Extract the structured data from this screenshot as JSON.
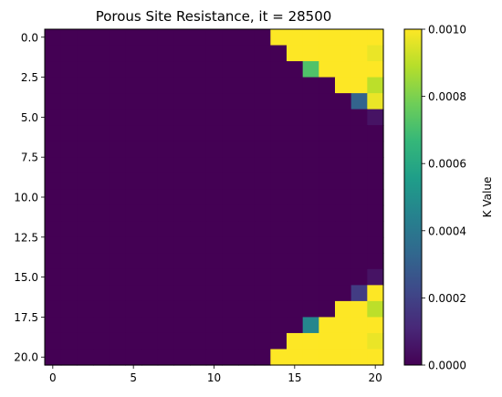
{
  "chart_data": {
    "type": "heatmap",
    "title": "Porous Site Resistance, it = 28500",
    "colorbar_label": "K Value",
    "colormap": "viridis",
    "vmin": 0.0,
    "vmax": 0.001,
    "n_rows": 21,
    "n_cols": 21,
    "xlim": [
      -0.5,
      20.5
    ],
    "ylim": [
      20.5,
      -0.5
    ],
    "x_ticks": [
      "0",
      "5",
      "10",
      "15",
      "20"
    ],
    "y_ticks": [
      "0.0",
      "2.5",
      "5.0",
      "7.5",
      "10.0",
      "12.5",
      "15.0",
      "17.5",
      "20.0"
    ],
    "colorbar_ticks": [
      "0.0000",
      "0.0002",
      "0.0004",
      "0.0006",
      "0.0008",
      "0.0010"
    ],
    "values": [
      [
        0,
        0,
        0,
        0,
        0,
        0,
        0,
        0,
        0,
        0,
        0,
        0,
        0,
        0,
        0.001,
        0.001,
        0.001,
        0.001,
        0.001,
        0.001,
        0.001
      ],
      [
        0,
        0,
        0,
        0,
        0,
        0,
        0,
        0,
        0,
        0,
        0,
        0,
        0,
        0,
        0,
        0.001,
        0.001,
        0.001,
        0.001,
        0.001,
        0.00097
      ],
      [
        0,
        0,
        0,
        0,
        0,
        0,
        0,
        0,
        0,
        0,
        0,
        0,
        0,
        0,
        0,
        0,
        0.00072,
        0.001,
        0.001,
        0.001,
        0.001
      ],
      [
        0,
        0,
        0,
        0,
        0,
        0,
        0,
        0,
        0,
        0,
        0,
        0,
        0,
        0,
        0,
        0,
        0,
        0,
        0.001,
        0.001,
        0.0009
      ],
      [
        0,
        0,
        0,
        0,
        0,
        0,
        0,
        0,
        0,
        0,
        0,
        0,
        0,
        0,
        0,
        0,
        0,
        0,
        0,
        0.00032,
        0.00097
      ],
      [
        0,
        0,
        0,
        0,
        0,
        0,
        0,
        0,
        0,
        0,
        0,
        0,
        0,
        0,
        0,
        0,
        0,
        0,
        0,
        0,
        5e-05
      ],
      [
        0,
        0,
        0,
        0,
        0,
        0,
        0,
        0,
        0,
        0,
        0,
        0,
        0,
        0,
        0,
        0,
        0,
        0,
        0,
        0,
        0
      ],
      [
        0,
        0,
        0,
        0,
        0,
        0,
        0,
        0,
        0,
        0,
        0,
        0,
        0,
        0,
        0,
        0,
        0,
        0,
        0,
        0,
        0
      ],
      [
        0,
        0,
        0,
        0,
        0,
        0,
        0,
        0,
        0,
        0,
        0,
        0,
        0,
        0,
        0,
        0,
        0,
        0,
        0,
        0,
        0
      ],
      [
        0,
        0,
        0,
        0,
        0,
        0,
        0,
        0,
        0,
        0,
        0,
        0,
        0,
        0,
        0,
        0,
        0,
        0,
        0,
        0,
        0
      ],
      [
        0,
        0,
        0,
        0,
        0,
        0,
        0,
        0,
        0,
        0,
        0,
        0,
        0,
        0,
        0,
        0,
        0,
        0,
        0,
        0,
        0
      ],
      [
        0,
        0,
        0,
        0,
        0,
        0,
        0,
        0,
        0,
        0,
        0,
        0,
        0,
        0,
        0,
        0,
        0,
        0,
        0,
        0,
        0
      ],
      [
        0,
        0,
        0,
        0,
        0,
        0,
        0,
        0,
        0,
        0,
        0,
        0,
        0,
        0,
        0,
        0,
        0,
        0,
        0,
        0,
        0
      ],
      [
        0,
        0,
        0,
        0,
        0,
        0,
        0,
        0,
        0,
        0,
        0,
        0,
        0,
        0,
        0,
        0,
        0,
        0,
        0,
        0,
        0
      ],
      [
        0,
        0,
        0,
        0,
        0,
        0,
        0,
        0,
        0,
        0,
        0,
        0,
        0,
        0,
        0,
        0,
        0,
        0,
        0,
        0,
        0
      ],
      [
        0,
        0,
        0,
        0,
        0,
        0,
        0,
        0,
        0,
        0,
        0,
        0,
        0,
        0,
        0,
        0,
        0,
        0,
        0,
        0,
        5e-05
      ],
      [
        0,
        0,
        0,
        0,
        0,
        0,
        0,
        0,
        0,
        0,
        0,
        0,
        0,
        0,
        0,
        0,
        0,
        0,
        0,
        0.00018,
        0.001
      ],
      [
        0,
        0,
        0,
        0,
        0,
        0,
        0,
        0,
        0,
        0,
        0,
        0,
        0,
        0,
        0,
        0,
        0,
        0,
        0.001,
        0.001,
        0.0009
      ],
      [
        0,
        0,
        0,
        0,
        0,
        0,
        0,
        0,
        0,
        0,
        0,
        0,
        0,
        0,
        0,
        0,
        0.00046,
        0.001,
        0.001,
        0.001,
        0.001
      ],
      [
        0,
        0,
        0,
        0,
        0,
        0,
        0,
        0,
        0,
        0,
        0,
        0,
        0,
        0,
        0,
        0.001,
        0.001,
        0.001,
        0.001,
        0.001,
        0.00097
      ],
      [
        0,
        0,
        0,
        0,
        0,
        0,
        0,
        0,
        0,
        0,
        0,
        0,
        0,
        0,
        0.001,
        0.001,
        0.001,
        0.001,
        0.001,
        0.001,
        0.001
      ]
    ]
  }
}
